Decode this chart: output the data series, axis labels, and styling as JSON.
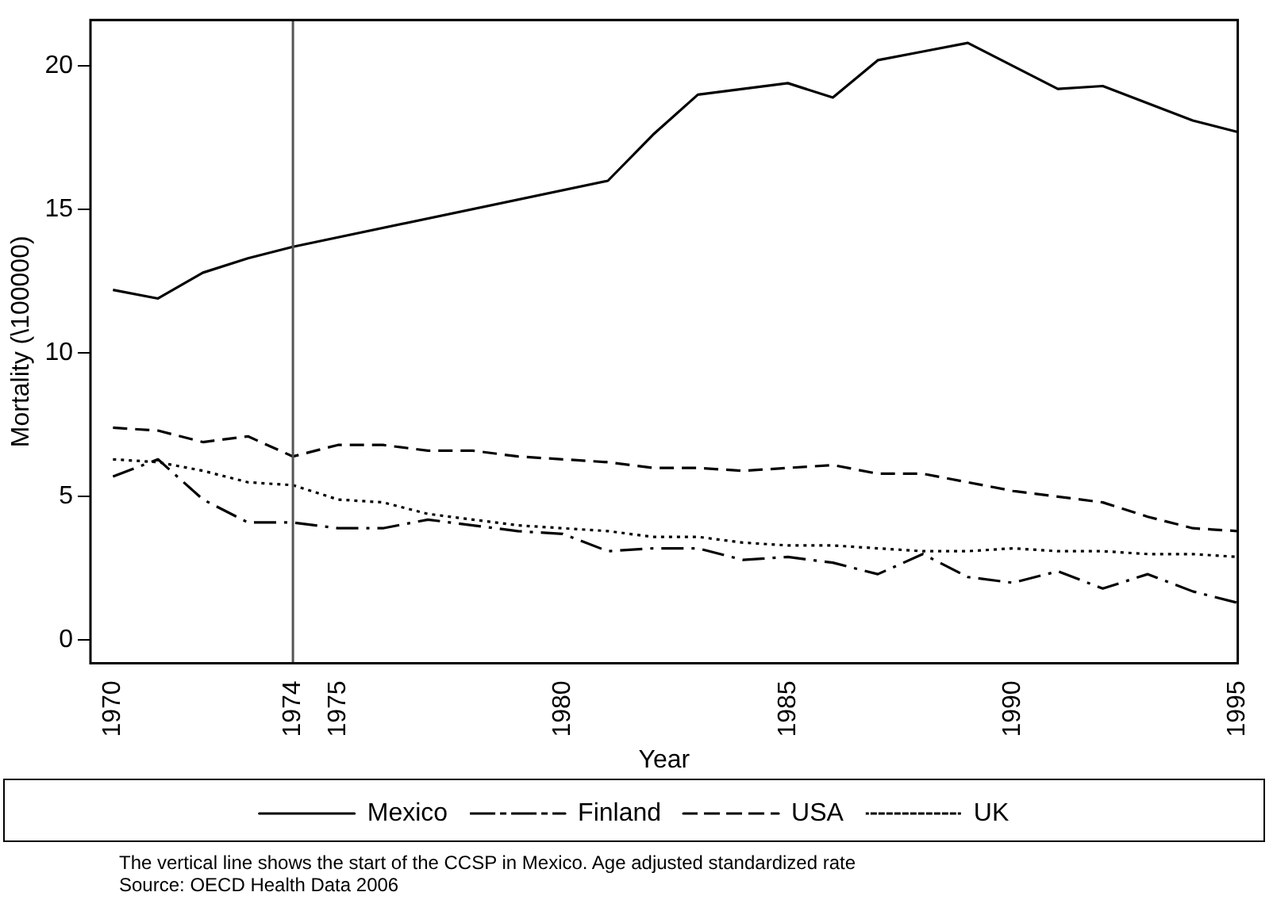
{
  "chart_data": {
    "type": "line",
    "xlabel": "Year",
    "ylabel": "Mortality (\\100000)",
    "x": [
      1970,
      1971,
      1972,
      1973,
      1974,
      1975,
      1976,
      1977,
      1978,
      1979,
      1980,
      1981,
      1982,
      1983,
      1984,
      1985,
      1986,
      1987,
      1988,
      1989,
      1990,
      1991,
      1992,
      1993,
      1994,
      1995
    ],
    "series": [
      {
        "name": "Mexico",
        "color": "#000000",
        "line_style": "solid",
        "x": [
          1970,
          1971,
          1972,
          1973,
          1974,
          1981,
          1982,
          1983,
          1984,
          1985,
          1986,
          1987,
          1988,
          1989,
          1990,
          1991,
          1992,
          1993,
          1994,
          1995
        ],
        "values": [
          12.2,
          11.9,
          12.8,
          13.3,
          13.7,
          16.0,
          17.6,
          19.0,
          19.2,
          19.4,
          18.9,
          20.2,
          20.5,
          20.8,
          20.0,
          19.2,
          19.3,
          18.7,
          18.1,
          17.7
        ]
      },
      {
        "name": "Finland",
        "color": "#000000",
        "line_style": "dashdot",
        "values": [
          5.7,
          6.3,
          4.9,
          4.1,
          4.1,
          3.9,
          3.9,
          4.2,
          4.0,
          3.8,
          3.7,
          3.1,
          3.2,
          3.2,
          2.8,
          2.9,
          2.7,
          2.3,
          3.0,
          2.2,
          2.0,
          2.4,
          1.8,
          2.3,
          1.7,
          1.3
        ]
      },
      {
        "name": "USA",
        "color": "#000000",
        "line_style": "dashed",
        "values": [
          7.4,
          7.3,
          6.9,
          7.1,
          6.4,
          6.8,
          6.8,
          6.6,
          6.6,
          6.4,
          6.3,
          6.2,
          6.0,
          6.0,
          5.9,
          6.0,
          6.1,
          5.8,
          5.8,
          5.5,
          5.2,
          5.0,
          4.8,
          4.3,
          3.9,
          3.8
        ]
      },
      {
        "name": "UK",
        "color": "#000000",
        "line_style": "dotted",
        "values": [
          6.3,
          6.2,
          5.9,
          5.5,
          5.4,
          4.9,
          4.8,
          4.4,
          4.2,
          4.0,
          3.9,
          3.8,
          3.6,
          3.6,
          3.4,
          3.3,
          3.3,
          3.2,
          3.1,
          3.1,
          3.2,
          3.1,
          3.1,
          3.0,
          3.0,
          2.9
        ]
      }
    ],
    "xlim": [
      1969.5,
      1995
    ],
    "xticks": [
      1970,
      1974,
      1975,
      1980,
      1985,
      1990,
      1995
    ],
    "ylim": [
      -0.8,
      21.6
    ],
    "yticks": [
      0,
      5,
      10,
      15,
      20
    ],
    "ref_lines": [
      {
        "axis": "x",
        "value": 1974,
        "color": "#555555"
      }
    ],
    "grid": false,
    "legend": "bottom",
    "marker": "none",
    "annotations": [
      "The vertical line shows the start of the CCSP in Mexico. Age adjusted standardized rate",
      "Source: OECD Health Data 2006"
    ]
  }
}
